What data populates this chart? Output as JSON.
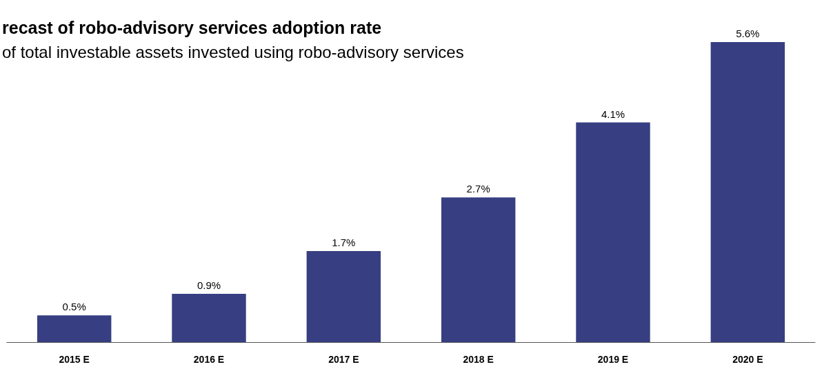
{
  "chart_data": {
    "type": "bar",
    "title": "recast of robo-advisory services adoption rate",
    "subtitle": "of total investable assets invested using robo-advisory services",
    "categories": [
      "2015 E",
      "2016 E",
      "2017 E",
      "2018 E",
      "2019 E",
      "2020 E"
    ],
    "values": [
      0.5,
      0.9,
      1.7,
      2.7,
      4.1,
      5.6
    ],
    "value_labels": [
      "0.5%",
      "0.9%",
      "1.7%",
      "2.7%",
      "4.1%",
      "5.6%"
    ],
    "color": "#373f82"
  }
}
